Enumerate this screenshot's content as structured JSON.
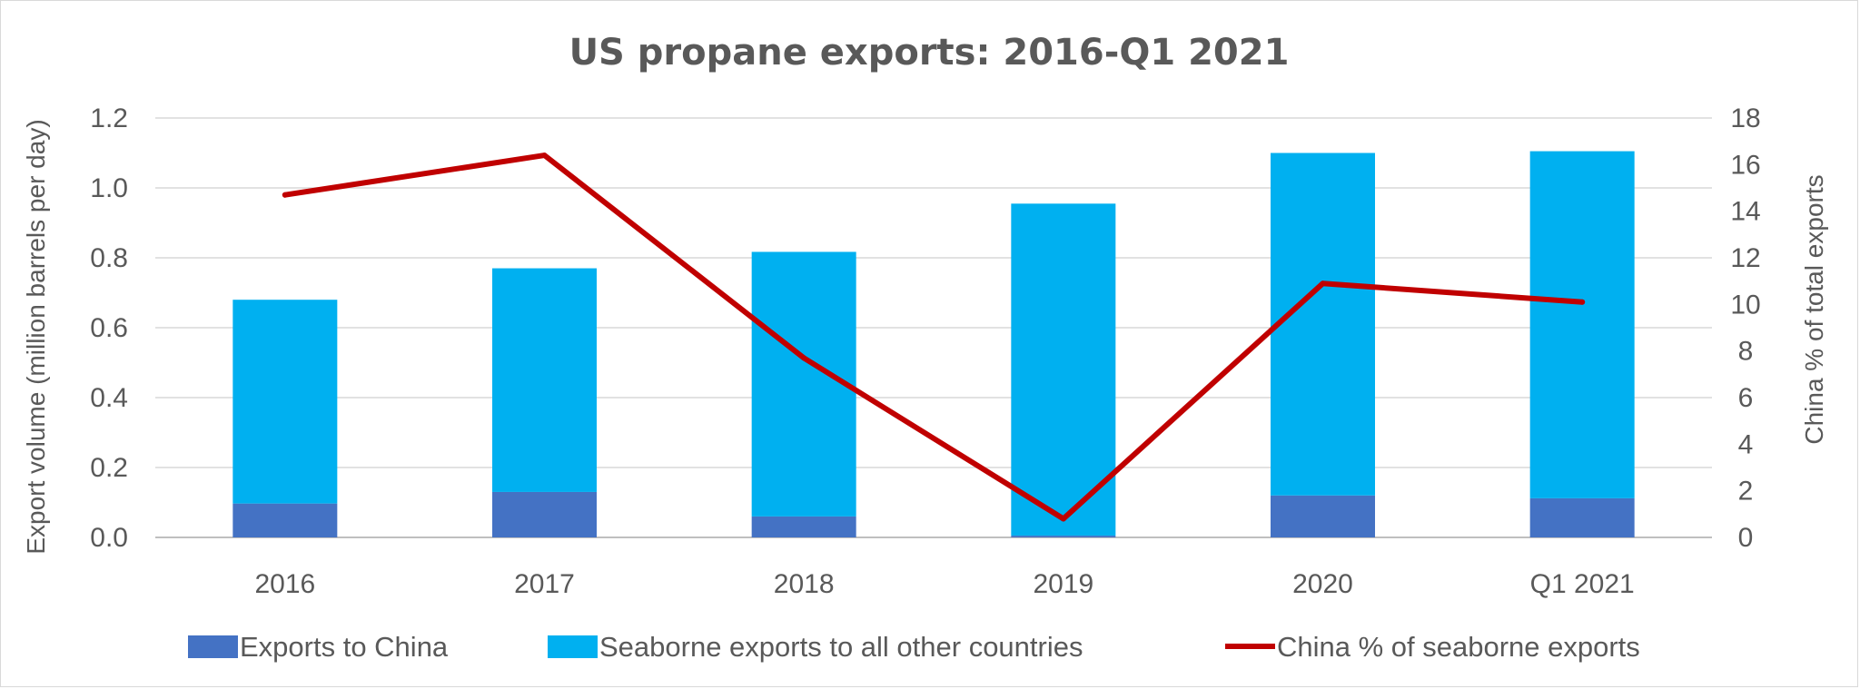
{
  "chart_data": {
    "type": "bar",
    "stacked": true,
    "title": "US propane exports: 2016-Q1 2021",
    "categories": [
      "2016",
      "2017",
      "2018",
      "2019",
      "2020",
      "Q1 2021"
    ],
    "ylabel": "Export volume (million barrels per day)",
    "ylim": [
      0,
      1.2
    ],
    "yticks": [
      "0.0",
      "0.2",
      "0.4",
      "0.6",
      "0.8",
      "1.0",
      "1.2"
    ],
    "y2label": "China % of total exports",
    "y2lim": [
      0,
      18
    ],
    "y2ticks": [
      "0",
      "2",
      "4",
      "6",
      "8",
      "10",
      "12",
      "14",
      "16",
      "18"
    ],
    "grid": true,
    "legend_position": "bottom",
    "series": [
      {
        "name": "Exports to China",
        "type": "bar",
        "axis": "left",
        "color": "#4472c4",
        "values": [
          0.097,
          0.13,
          0.06,
          0.005,
          0.12,
          0.112
        ]
      },
      {
        "name": "Seaborne exports to all other countries",
        "type": "bar",
        "axis": "left",
        "color": "#00b0f0",
        "values": [
          0.583,
          0.64,
          0.757,
          0.95,
          0.98,
          0.993
        ]
      },
      {
        "name": "China % of seaborne exports",
        "type": "line",
        "axis": "right",
        "color": "#c00000",
        "values": [
          14.7,
          16.4,
          7.7,
          0.8,
          10.9,
          10.1
        ]
      }
    ]
  }
}
